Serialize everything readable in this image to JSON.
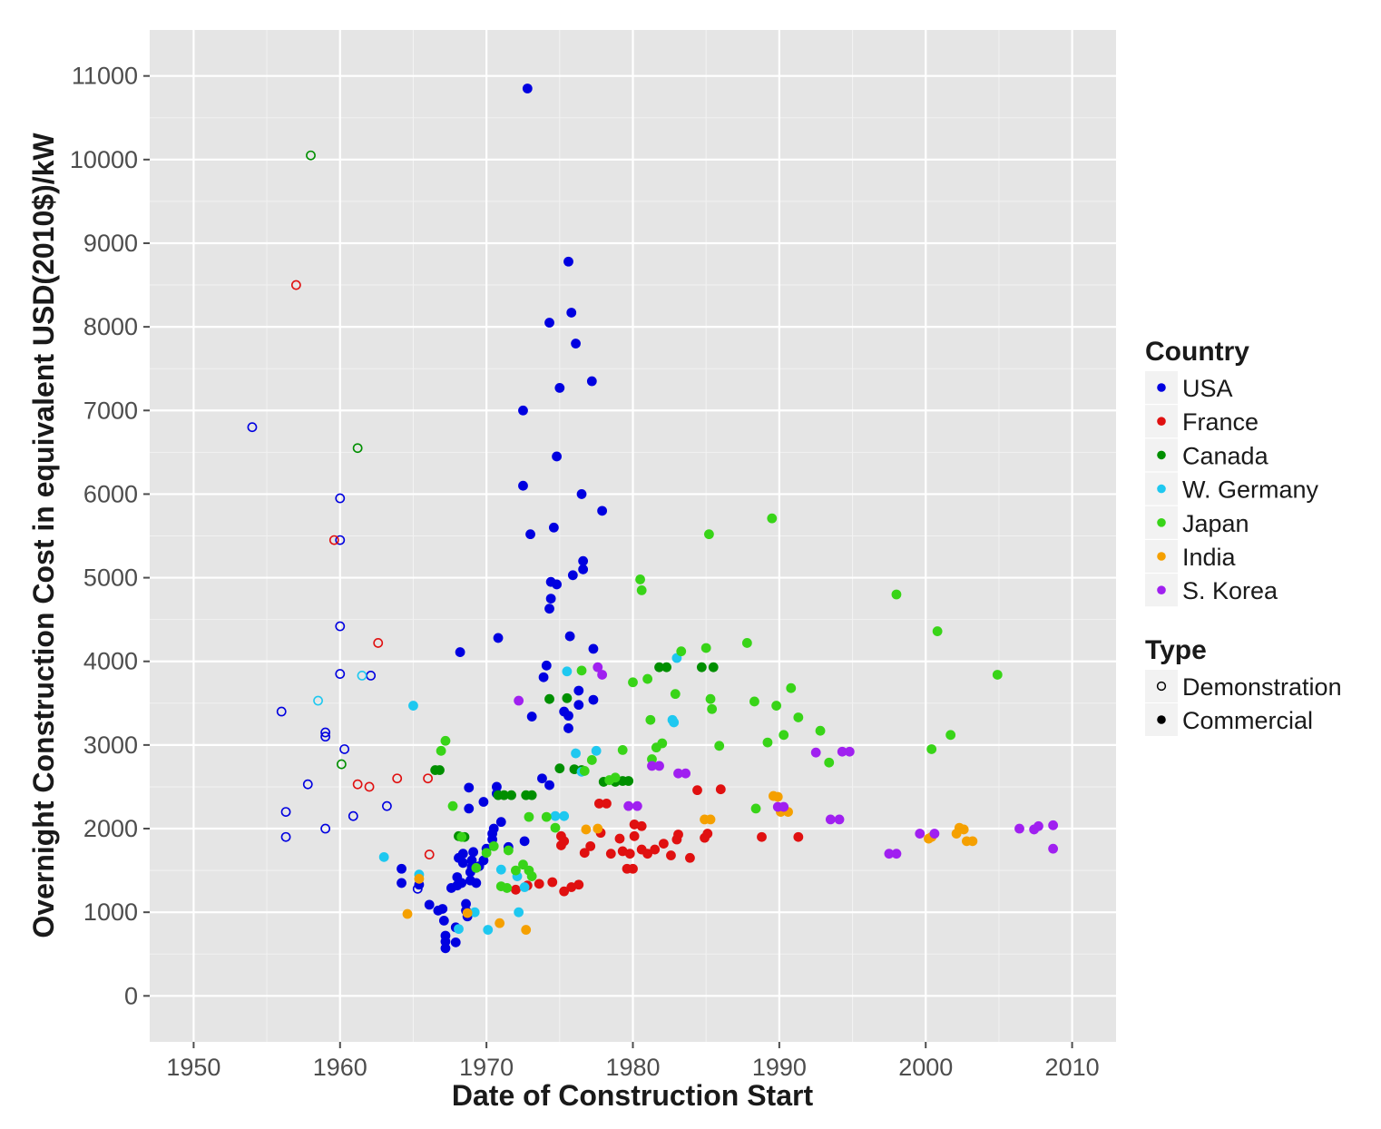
{
  "chart_data": {
    "type": "scatter",
    "xlabel": "Date of Construction Start",
    "ylabel": "Overnight Construction Cost in equivalent USD(2010$)/kW",
    "xlim": [
      1947,
      2013
    ],
    "ylim": [
      -550,
      11550
    ],
    "x_ticks": [
      "1950",
      "1960",
      "1970",
      "1980",
      "1990",
      "2000",
      "2010"
    ],
    "y_ticks": [
      "0",
      "1000",
      "2000",
      "3000",
      "4000",
      "5000",
      "6000",
      "7000",
      "8000",
      "9000",
      "10000",
      "11000"
    ],
    "grid": true,
    "legend_position": "right",
    "legend": {
      "country_title": "Country",
      "type_title": "Type",
      "countries": [
        {
          "name": "USA",
          "color": "#0000e0"
        },
        {
          "name": "France",
          "color": "#e01010"
        },
        {
          "name": "Canada",
          "color": "#008f00"
        },
        {
          "name": "W. Germany",
          "color": "#1ec8f0"
        },
        {
          "name": "Japan",
          "color": "#38d418"
        },
        {
          "name": "India",
          "color": "#f5a000"
        },
        {
          "name": "S. Korea",
          "color": "#a020f0"
        }
      ],
      "types": [
        "Demonstration",
        "Commercial"
      ]
    },
    "series": [
      {
        "name": "USA",
        "color": "#0000e0",
        "demonstration": [
          [
            1954,
            6800
          ],
          [
            1956,
            3400
          ],
          [
            1956.3,
            2200
          ],
          [
            1956.3,
            1900
          ],
          [
            1957.8,
            2530
          ],
          [
            1959,
            3100
          ],
          [
            1959,
            3150
          ],
          [
            1959,
            2000
          ],
          [
            1960,
            5950
          ],
          [
            1960,
            5450
          ],
          [
            1960,
            4420
          ],
          [
            1960,
            3850
          ],
          [
            1960.3,
            2950
          ],
          [
            1960.9,
            2150
          ],
          [
            1962.1,
            3830
          ],
          [
            1963.2,
            2270
          ],
          [
            1965.3,
            1280
          ]
        ],
        "commercial": [
          [
            1972.8,
            10850
          ],
          [
            1975.6,
            8780
          ],
          [
            1975.8,
            8170
          ],
          [
            1974.3,
            8050
          ],
          [
            1976.1,
            7800
          ],
          [
            1977.2,
            7350
          ],
          [
            1975,
            7270
          ],
          [
            1972.5,
            7000
          ],
          [
            1974.8,
            6450
          ],
          [
            1972.5,
            6100
          ],
          [
            1976.5,
            6000
          ],
          [
            1977.9,
            5800
          ],
          [
            1974.6,
            5600
          ],
          [
            1973,
            5520
          ],
          [
            1976.6,
            5200
          ],
          [
            1976.6,
            5100
          ],
          [
            1975.9,
            5030
          ],
          [
            1974.4,
            4950
          ],
          [
            1974.8,
            4920
          ],
          [
            1974.4,
            4750
          ],
          [
            1974.3,
            4630
          ],
          [
            1975.7,
            4300
          ],
          [
            1970.8,
            4280
          ],
          [
            1977.3,
            4150
          ],
          [
            1968.2,
            4110
          ],
          [
            1974.1,
            3950
          ],
          [
            1973.9,
            3810
          ],
          [
            1976.3,
            3650
          ],
          [
            1976.3,
            3480
          ],
          [
            1977.3,
            3540
          ],
          [
            1975.3,
            3400
          ],
          [
            1975.6,
            3350
          ],
          [
            1973.1,
            3340
          ],
          [
            1975.6,
            3200
          ],
          [
            1973.8,
            2600
          ],
          [
            1974.3,
            2520
          ],
          [
            1968.8,
            2490
          ],
          [
            1970.7,
            2500
          ],
          [
            1970.7,
            2420
          ],
          [
            1969.8,
            2320
          ],
          [
            1968.8,
            2240
          ],
          [
            1971,
            2080
          ],
          [
            1970.5,
            2000
          ],
          [
            1970.4,
            1940
          ],
          [
            1970.4,
            1870
          ],
          [
            1972.6,
            1850
          ],
          [
            1971.5,
            1780
          ],
          [
            1964.2,
            1520
          ],
          [
            1964.2,
            1350
          ],
          [
            1965.4,
            1330
          ],
          [
            1966.1,
            1090
          ],
          [
            1966.7,
            1020
          ],
          [
            1967,
            1040
          ],
          [
            1967.1,
            900
          ],
          [
            1967.2,
            720
          ],
          [
            1967.2,
            650
          ],
          [
            1967.2,
            570
          ],
          [
            1967.6,
            1290
          ],
          [
            1968,
            1420
          ],
          [
            1968,
            1320
          ],
          [
            1968.4,
            1590
          ],
          [
            1968.4,
            1700
          ],
          [
            1968.6,
            1100
          ],
          [
            1968.6,
            1020
          ],
          [
            1968.7,
            950
          ],
          [
            1968.9,
            1480
          ],
          [
            1968.9,
            1380
          ],
          [
            1969,
            1620
          ],
          [
            1969,
            1540
          ],
          [
            1969.1,
            1720
          ],
          [
            1969.3,
            1350
          ],
          [
            1969.8,
            1620
          ],
          [
            1970,
            1760
          ],
          [
            1968.1,
            1650
          ],
          [
            1967.9,
            820
          ],
          [
            1967.9,
            640
          ],
          [
            1968.3,
            1350
          ],
          [
            1969.5,
            1550
          ]
        ]
      },
      {
        "name": "France",
        "color": "#e01010",
        "demonstration": [
          [
            1957,
            8500
          ],
          [
            1959.6,
            5450
          ],
          [
            1962.6,
            4220
          ],
          [
            1961.2,
            2530
          ],
          [
            1962,
            2500
          ],
          [
            1963.9,
            2600
          ],
          [
            1966,
            2600
          ],
          [
            1966.1,
            1690
          ]
        ],
        "commercial": [
          [
            1972,
            1270
          ],
          [
            1972.8,
            1320
          ],
          [
            1973.6,
            1340
          ],
          [
            1974.5,
            1360
          ],
          [
            1975.3,
            1250
          ],
          [
            1975.8,
            1300
          ],
          [
            1976.3,
            1330
          ],
          [
            1975.1,
            1800
          ],
          [
            1975.3,
            1850
          ],
          [
            1975.1,
            1910
          ],
          [
            1976.7,
            1710
          ],
          [
            1977.1,
            1790
          ],
          [
            1977.7,
            2300
          ],
          [
            1978.2,
            2300
          ],
          [
            1979.1,
            1880
          ],
          [
            1979.3,
            1730
          ],
          [
            1979.6,
            1520
          ],
          [
            1980,
            1520
          ],
          [
            1979.8,
            1700
          ],
          [
            1980.1,
            1910
          ],
          [
            1980.1,
            2050
          ],
          [
            1980.6,
            2030
          ],
          [
            1980.6,
            1750
          ],
          [
            1981,
            1700
          ],
          [
            1981.5,
            1750
          ],
          [
            1982.1,
            1820
          ],
          [
            1982.6,
            1680
          ],
          [
            1983,
            1870
          ],
          [
            1983.1,
            1930
          ],
          [
            1983.9,
            1650
          ],
          [
            1984.4,
            2460
          ],
          [
            1984.9,
            1890
          ],
          [
            1985.1,
            1940
          ],
          [
            1986,
            2470
          ],
          [
            1988.8,
            1900
          ],
          [
            1991.3,
            1900
          ],
          [
            1978.5,
            1700
          ],
          [
            1977.8,
            1950
          ]
        ]
      },
      {
        "name": "Canada",
        "color": "#008f00",
        "demonstration": [
          [
            1958,
            10050
          ],
          [
            1961.2,
            6550
          ],
          [
            1960.1,
            2770
          ]
        ],
        "commercial": [
          [
            1966.5,
            2700
          ],
          [
            1966.8,
            2700
          ],
          [
            1968.1,
            1910
          ],
          [
            1968.5,
            1900
          ],
          [
            1970.8,
            2400
          ],
          [
            1971.2,
            2400
          ],
          [
            1971.7,
            2400
          ],
          [
            1972.7,
            2400
          ],
          [
            1973.1,
            2400
          ],
          [
            1974.3,
            3550
          ],
          [
            1975,
            2720
          ],
          [
            1975.5,
            3560
          ],
          [
            1976,
            2710
          ],
          [
            1976.5,
            2700
          ],
          [
            1978,
            2560
          ],
          [
            1978.8,
            2560
          ],
          [
            1979.3,
            2570
          ],
          [
            1979.7,
            2570
          ],
          [
            1981.8,
            3930
          ],
          [
            1982.3,
            3930
          ],
          [
            1984.7,
            3930
          ],
          [
            1985.5,
            3930
          ]
        ]
      },
      {
        "name": "W. Germany",
        "color": "#1ec8f0",
        "demonstration": [
          [
            1958.5,
            3530
          ],
          [
            1961.5,
            3830
          ]
        ],
        "commercial": [
          [
            1963,
            1660
          ],
          [
            1965,
            3470
          ],
          [
            1965.4,
            1450
          ],
          [
            1968.1,
            800
          ],
          [
            1969.2,
            1000
          ],
          [
            1970.1,
            790
          ],
          [
            1971,
            1510
          ],
          [
            1972.2,
            1000
          ],
          [
            1972.6,
            1300
          ],
          [
            1974.7,
            2150
          ],
          [
            1975.3,
            2150
          ],
          [
            1975.5,
            3880
          ],
          [
            1976.1,
            2900
          ],
          [
            1976.5,
            2680
          ],
          [
            1977.5,
            2930
          ],
          [
            1982.7,
            3300
          ],
          [
            1982.8,
            3270
          ],
          [
            1983,
            4040
          ],
          [
            1972.1,
            1430
          ]
        ]
      },
      {
        "name": "Japan",
        "color": "#38d418",
        "demonstration": [],
        "commercial": [
          [
            1966.9,
            2930
          ],
          [
            1967.2,
            3050
          ],
          [
            1967.7,
            2270
          ],
          [
            1968.3,
            1900
          ],
          [
            1969.3,
            1530
          ],
          [
            1970,
            1710
          ],
          [
            1970.5,
            1790
          ],
          [
            1971,
            1310
          ],
          [
            1971.4,
            1290
          ],
          [
            1971.5,
            1740
          ],
          [
            1972,
            1500
          ],
          [
            1972.5,
            1570
          ],
          [
            1972.9,
            1500
          ],
          [
            1973.1,
            1430
          ],
          [
            1972.9,
            2140
          ],
          [
            1974.1,
            2140
          ],
          [
            1974.7,
            2010
          ],
          [
            1976.5,
            3890
          ],
          [
            1976.7,
            2690
          ],
          [
            1977.2,
            2820
          ],
          [
            1978.4,
            2580
          ],
          [
            1978.8,
            2610
          ],
          [
            1979.3,
            2940
          ],
          [
            1980,
            3750
          ],
          [
            1980.5,
            4980
          ],
          [
            1980.6,
            4850
          ],
          [
            1981,
            3790
          ],
          [
            1981.2,
            3300
          ],
          [
            1981.3,
            2830
          ],
          [
            1981.6,
            2970
          ],
          [
            1982,
            3020
          ],
          [
            1982.9,
            3610
          ],
          [
            1983.3,
            4120
          ],
          [
            1985,
            4160
          ],
          [
            1985.2,
            5520
          ],
          [
            1985.3,
            3550
          ],
          [
            1985.4,
            3430
          ],
          [
            1985.9,
            2990
          ],
          [
            1987.8,
            4220
          ],
          [
            1988.3,
            3520
          ],
          [
            1988.4,
            2240
          ],
          [
            1989.2,
            3030
          ],
          [
            1989.5,
            5710
          ],
          [
            1989.8,
            3470
          ],
          [
            1990.3,
            3120
          ],
          [
            1990.8,
            3680
          ],
          [
            1991.3,
            3330
          ],
          [
            1992.8,
            3170
          ],
          [
            1993.4,
            2790
          ],
          [
            1998,
            4800
          ],
          [
            2000.4,
            2950
          ],
          [
            2000.8,
            4360
          ],
          [
            2001.7,
            3120
          ],
          [
            2004.9,
            3840
          ]
        ]
      },
      {
        "name": "India",
        "color": "#f5a000",
        "demonstration": [],
        "commercial": [
          [
            1964.6,
            980
          ],
          [
            1965.4,
            1400
          ],
          [
            1968.7,
            990
          ],
          [
            1970.9,
            870
          ],
          [
            1972.7,
            790
          ],
          [
            1976.8,
            1990
          ],
          [
            1977.6,
            2000
          ],
          [
            1984.9,
            2110
          ],
          [
            1985.3,
            2110
          ],
          [
            1989.6,
            2390
          ],
          [
            1989.9,
            2380
          ],
          [
            1990.1,
            2200
          ],
          [
            1990.6,
            2200
          ],
          [
            2000.2,
            1880
          ],
          [
            2000.4,
            1900
          ],
          [
            2002.1,
            1940
          ],
          [
            2002.3,
            2010
          ],
          [
            2002.6,
            1990
          ],
          [
            2002.8,
            1850
          ],
          [
            2003.2,
            1850
          ]
        ]
      },
      {
        "name": "S. Korea",
        "color": "#a020f0",
        "demonstration": [],
        "commercial": [
          [
            1972.2,
            3530
          ],
          [
            1977.6,
            3930
          ],
          [
            1977.9,
            3840
          ],
          [
            1979.7,
            2270
          ],
          [
            1980.3,
            2270
          ],
          [
            1981.3,
            2750
          ],
          [
            1981.8,
            2750
          ],
          [
            1983.1,
            2660
          ],
          [
            1983.6,
            2660
          ],
          [
            1989.9,
            2260
          ],
          [
            1990.3,
            2260
          ],
          [
            1992.5,
            2910
          ],
          [
            1993.5,
            2110
          ],
          [
            1994.1,
            2110
          ],
          [
            1994.3,
            2920
          ],
          [
            1994.8,
            2920
          ],
          [
            1997.5,
            1700
          ],
          [
            1998,
            1700
          ],
          [
            1999.6,
            1940
          ],
          [
            2000.6,
            1940
          ],
          [
            2006.4,
            2000
          ],
          [
            2007.4,
            1990
          ],
          [
            2007.7,
            2030
          ],
          [
            2008.7,
            2040
          ],
          [
            2008.7,
            1760
          ]
        ]
      }
    ]
  }
}
